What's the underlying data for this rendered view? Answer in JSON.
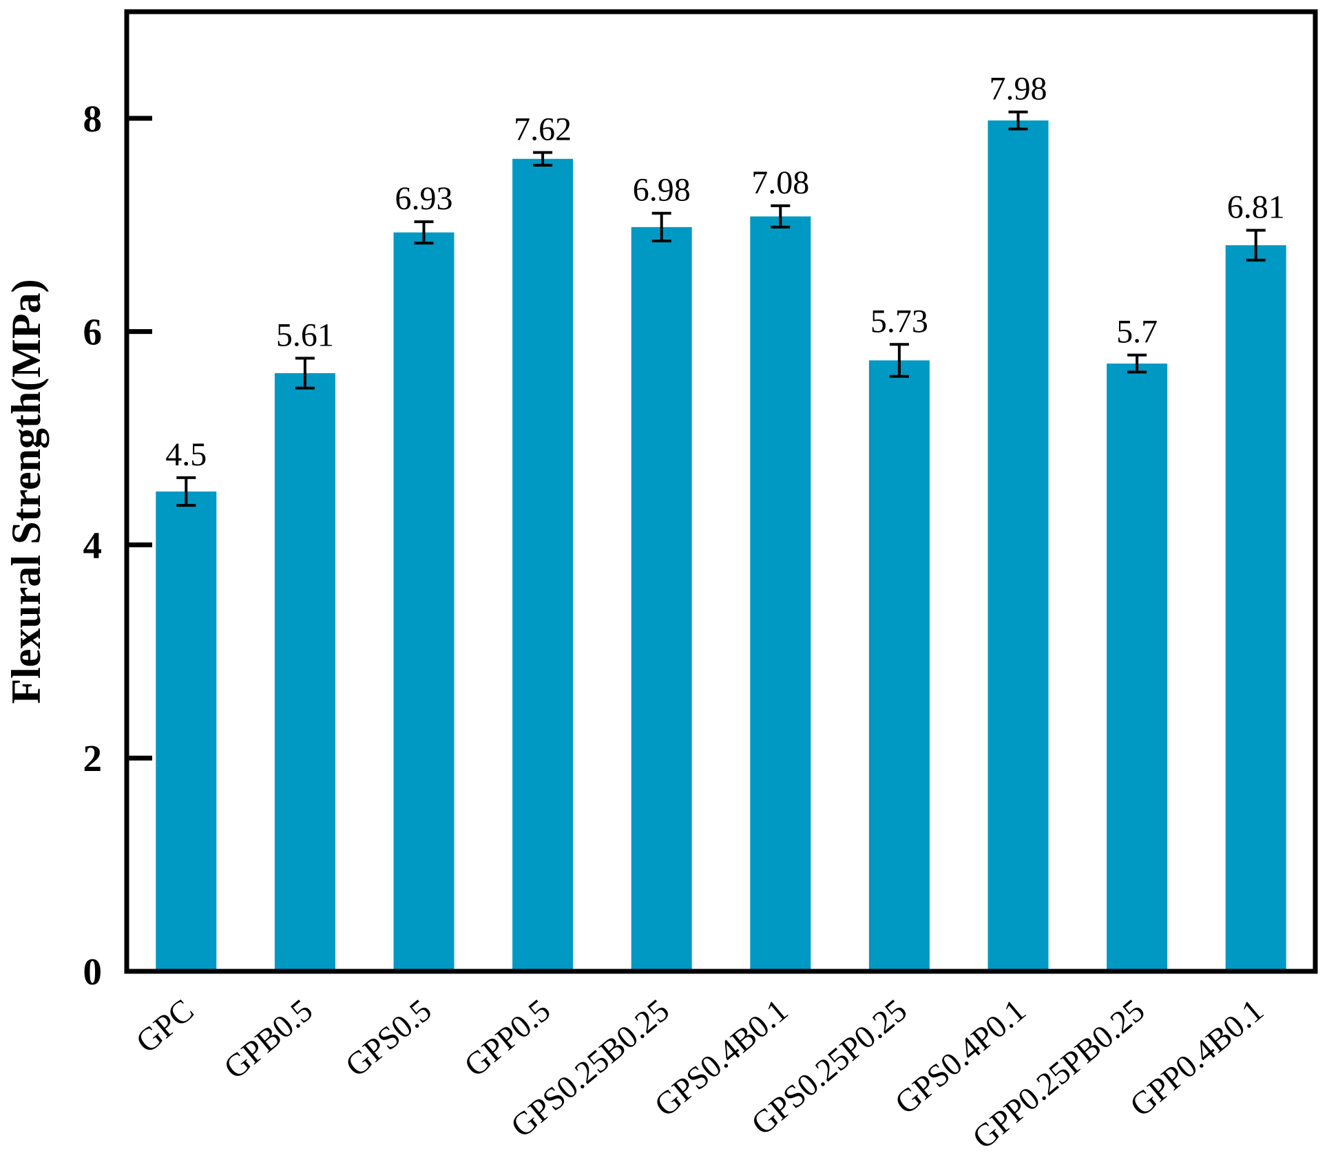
{
  "chart_data": {
    "type": "bar",
    "title": "",
    "xlabel": "",
    "ylabel": "Flexural Strength(MPa)",
    "categories": [
      "GPC",
      "GPB0.5",
      "GPS0.5",
      "GPP0.5",
      "GPS0.25B0.25",
      "GPS0.4B0.1",
      "GPS0.25P0.25",
      "GPS0.4P0.1",
      "GPP0.25PB0.25",
      "GPP0.4B0.1"
    ],
    "values": [
      4.5,
      5.61,
      6.93,
      7.62,
      6.98,
      7.08,
      5.73,
      7.98,
      5.7,
      6.81
    ],
    "value_labels": [
      "4.5",
      "5.61",
      "6.93",
      "7.62",
      "6.98",
      "7.08",
      "5.73",
      "7.98",
      "5.7",
      "6.81"
    ],
    "errors": [
      0.13,
      0.14,
      0.1,
      0.06,
      0.13,
      0.1,
      0.15,
      0.08,
      0.08,
      0.14
    ],
    "yticks": [
      0,
      2,
      4,
      6,
      8
    ],
    "ylim": [
      0,
      9
    ],
    "grid": false,
    "legend_position": "none",
    "x_label_rotation_deg": -40,
    "bar_color": "#0099c3",
    "error_bar_color": "#000000",
    "axis_color": "#000000",
    "background_color": "#ffffff"
  }
}
